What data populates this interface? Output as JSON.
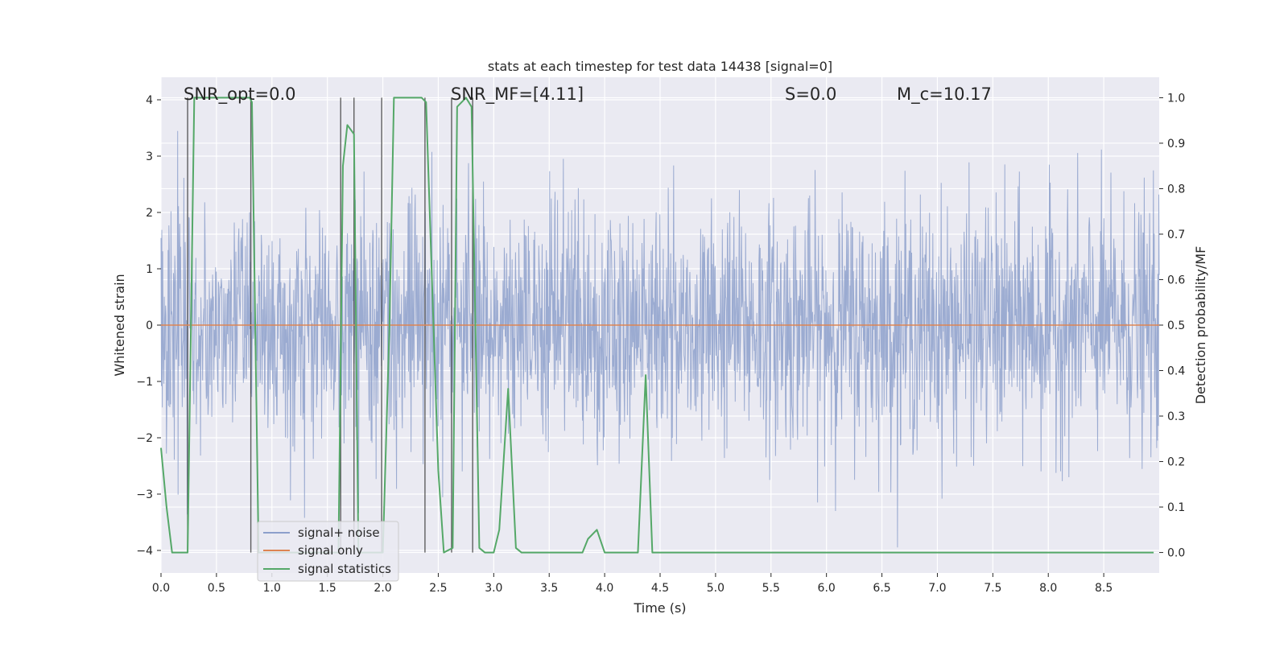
{
  "chart_data": {
    "type": "line",
    "title": "stats at each timestep for test data 14438 [signal=0]",
    "xlabel": "Time (s)",
    "ylabel_left": "Whitened strain",
    "ylabel_right": "Detection probability/MF",
    "xlim": [
      0,
      9
    ],
    "ylim_left": [
      -4.4,
      4.4
    ],
    "ylim_right": [
      -0.045,
      1.045
    ],
    "x_ticks": [
      0.0,
      0.5,
      1.0,
      1.5,
      2.0,
      2.5,
      3.0,
      3.5,
      4.0,
      4.5,
      5.0,
      5.5,
      6.0,
      6.5,
      7.0,
      7.5,
      8.0,
      8.5
    ],
    "x_tick_labels": [
      "0.0",
      "0.5",
      "1.0",
      "1.5",
      "2.0",
      "2.5",
      "3.0",
      "3.5",
      "4.0",
      "4.5",
      "5.0",
      "5.5",
      "6.0",
      "6.5",
      "7.0",
      "7.5",
      "8.0",
      "8.5"
    ],
    "y_left_ticks": [
      -4,
      -3,
      -2,
      -1,
      0,
      1,
      2,
      3,
      4
    ],
    "y_left_tick_labels": [
      "−4",
      "−3",
      "−2",
      "−1",
      "0",
      "1",
      "2",
      "3",
      "4"
    ],
    "y_right_ticks": [
      0.0,
      0.1,
      0.2,
      0.3,
      0.4,
      0.5,
      0.6,
      0.7,
      0.8,
      0.9,
      1.0
    ],
    "y_right_tick_labels": [
      "0.0",
      "0.1",
      "0.2",
      "0.3",
      "0.4",
      "0.5",
      "0.6",
      "0.7",
      "0.8",
      "0.9",
      "1.0"
    ],
    "grid": true,
    "legend_position": "lower-left",
    "annotations": [
      {
        "text": "SNR_opt=0.0",
        "x": 0.2,
        "y": 4.1
      },
      {
        "text": "SNR_MF=[4.11]",
        "x": 2.6,
        "y": 4.1
      },
      {
        "text": "S=0.0",
        "x": 5.6,
        "y": 4.1
      },
      {
        "text": "M_c=10.17",
        "x": 6.6,
        "y": 4.1
      }
    ],
    "series": [
      {
        "name": "signal+ noise",
        "color": "#8da0cb",
        "axis": "left",
        "kind": "noise",
        "amplitude_sigma": 1.0,
        "typical_peak_range": [
          2.5,
          4.0
        ]
      },
      {
        "name": "signal only",
        "color": "#dd8452",
        "axis": "left",
        "x": [
          0,
          9
        ],
        "y": [
          0,
          0
        ]
      },
      {
        "name": "signal statistics",
        "color": "#55a868",
        "axis": "right",
        "x": [
          0.0,
          0.05,
          0.1,
          0.24,
          0.3,
          0.4,
          0.8,
          0.82,
          0.88,
          1.6,
          1.64,
          1.68,
          1.74,
          1.78,
          2.0,
          2.06,
          2.1,
          2.35,
          2.39,
          2.5,
          2.55,
          2.63,
          2.67,
          2.75,
          2.8,
          2.87,
          2.92,
          3.0,
          3.05,
          3.13,
          3.2,
          3.25,
          3.5,
          3.8,
          3.85,
          3.93,
          4.0,
          4.3,
          4.37,
          4.43,
          8.95
        ],
        "y": [
          0.23,
          0.1,
          0.0,
          0.0,
          1.0,
          1.0,
          1.0,
          0.99,
          0.0,
          0.0,
          0.85,
          0.94,
          0.92,
          0.0,
          0.0,
          0.5,
          1.0,
          1.0,
          0.99,
          0.18,
          0.0,
          0.01,
          0.98,
          1.0,
          0.98,
          0.01,
          0.0,
          0.0,
          0.05,
          0.36,
          0.01,
          0.0,
          0.0,
          0.0,
          0.03,
          0.05,
          0.0,
          0.0,
          0.39,
          0.0,
          0.0
        ]
      }
    ],
    "vertical_markers": [
      0.24,
      0.81,
      1.62,
      1.74,
      1.99,
      2.38,
      2.62,
      2.81
    ]
  }
}
